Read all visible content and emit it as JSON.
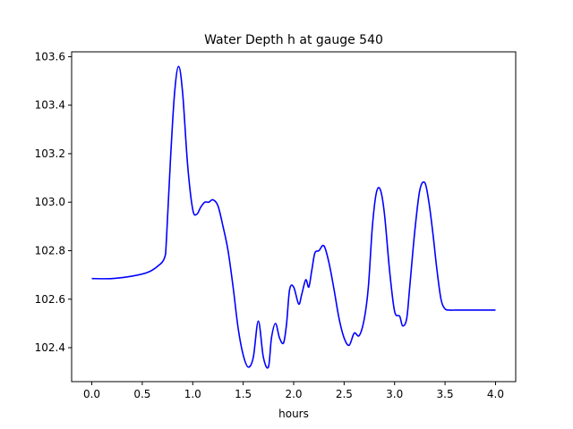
{
  "chart_data": {
    "type": "line",
    "title": "Water Depth h at gauge 540",
    "xlabel": "hours",
    "ylabel": "",
    "xlim": [
      -0.2,
      4.2
    ],
    "ylim": [
      102.26,
      103.62
    ],
    "grid": false,
    "legend": "none",
    "x_ticks": [
      {
        "value": 0.0,
        "label": "0.0"
      },
      {
        "value": 0.5,
        "label": "0.5"
      },
      {
        "value": 1.0,
        "label": "1.0"
      },
      {
        "value": 1.5,
        "label": "1.5"
      },
      {
        "value": 2.0,
        "label": "2.0"
      },
      {
        "value": 2.5,
        "label": "2.5"
      },
      {
        "value": 3.0,
        "label": "3.0"
      },
      {
        "value": 3.5,
        "label": "3.5"
      },
      {
        "value": 4.0,
        "label": "4.0"
      }
    ],
    "y_ticks": [
      {
        "value": 102.4,
        "label": "102.4"
      },
      {
        "value": 102.6,
        "label": "102.6"
      },
      {
        "value": 102.8,
        "label": "102.8"
      },
      {
        "value": 103.0,
        "label": "103.0"
      },
      {
        "value": 103.2,
        "label": "103.2"
      },
      {
        "value": 103.4,
        "label": "103.4"
      },
      {
        "value": 103.6,
        "label": "103.6"
      }
    ],
    "series": [
      {
        "color": "#0000ff",
        "x": [
          0.0,
          0.2,
          0.4,
          0.55,
          0.65,
          0.72,
          0.74,
          0.78,
          0.82,
          0.86,
          0.9,
          0.95,
          1.0,
          1.04,
          1.08,
          1.12,
          1.16,
          1.2,
          1.25,
          1.3,
          1.35,
          1.4,
          1.45,
          1.5,
          1.55,
          1.6,
          1.65,
          1.7,
          1.75,
          1.78,
          1.82,
          1.86,
          1.9,
          1.93,
          1.96,
          2.0,
          2.05,
          2.08,
          2.12,
          2.15,
          2.18,
          2.21,
          2.25,
          2.3,
          2.35,
          2.4,
          2.45,
          2.5,
          2.55,
          2.6,
          2.65,
          2.7,
          2.74,
          2.78,
          2.82,
          2.86,
          2.9,
          2.95,
          3.0,
          3.05,
          3.08,
          3.12,
          3.15,
          3.2,
          3.25,
          3.3,
          3.34,
          3.38,
          3.42,
          3.46,
          3.5,
          3.55,
          3.6,
          3.65,
          3.7,
          3.75,
          3.8,
          3.85,
          3.9,
          3.95,
          4.0
        ],
        "y": [
          102.685,
          102.685,
          102.695,
          102.71,
          102.735,
          102.77,
          102.85,
          103.18,
          103.45,
          103.56,
          103.45,
          103.15,
          102.97,
          102.95,
          102.98,
          103.0,
          103.0,
          103.01,
          102.985,
          102.9,
          102.8,
          102.65,
          102.48,
          102.37,
          102.32,
          102.36,
          102.51,
          102.36,
          102.32,
          102.44,
          102.5,
          102.44,
          102.42,
          102.5,
          102.64,
          102.65,
          102.58,
          102.62,
          102.68,
          102.65,
          102.72,
          102.79,
          102.8,
          102.82,
          102.75,
          102.64,
          102.52,
          102.44,
          102.41,
          102.46,
          102.45,
          102.52,
          102.65,
          102.9,
          103.04,
          103.05,
          102.95,
          102.72,
          102.55,
          102.53,
          102.49,
          102.52,
          102.65,
          102.88,
          103.05,
          103.08,
          103.0,
          102.87,
          102.72,
          102.6,
          102.56,
          102.555,
          102.555,
          102.555,
          102.555,
          102.555,
          102.555,
          102.555,
          102.555,
          102.555,
          102.555
        ]
      }
    ]
  }
}
